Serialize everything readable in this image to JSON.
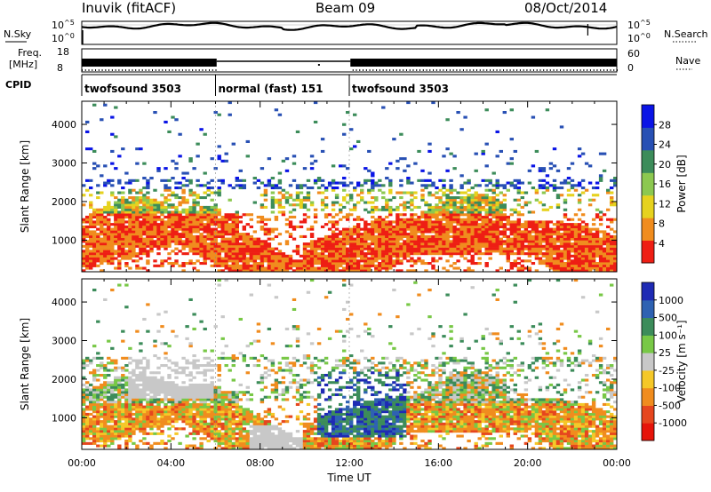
{
  "header": {
    "station": "Inuvik (fitACF)",
    "beam": "Beam 09",
    "date": "08/Oct/2014"
  },
  "strip_labels": {
    "nsky": "N.Sky",
    "nsearch": "N.Search",
    "freq": "Freq.",
    "freq_unit": "[MHz]",
    "nave": "Nave",
    "cpid": "CPID",
    "nsky_ticks": [
      "10^5",
      "10^0"
    ],
    "freq_ticks": [
      "8",
      "18"
    ],
    "nave_ticks": [
      "60",
      "0"
    ],
    "nsearch_ticks": [
      "10^5",
      "10^0"
    ]
  },
  "cpid_segments": [
    {
      "label": "twofsound 3503",
      "start_hour": 0,
      "end_hour": 6
    },
    {
      "label": "normal (fast) 151",
      "start_hour": 6,
      "end_hour": 12
    },
    {
      "label": "twofsound 3503",
      "start_hour": 12,
      "end_hour": 24
    }
  ],
  "chart_data": [
    {
      "type": "heatmap",
      "panel": "power",
      "ylabel": "Slant Range [km]",
      "yticks": [
        1000,
        2000,
        3000,
        4000
      ],
      "ylim": [
        180,
        4600
      ],
      "colorbar_label": "Power [dB]",
      "colorbar_ticks": [
        4,
        8,
        12,
        16,
        20,
        24,
        28
      ],
      "colorbar_range": [
        0,
        32
      ],
      "colors": [
        "#0a14e6",
        "#2850b4",
        "#3c8c5a",
        "#8cc850",
        "#e6d21e",
        "#f08c1e",
        "#ee1e14"
      ]
    },
    {
      "type": "heatmap",
      "panel": "velocity",
      "ylabel": "Slant Range [km]",
      "yticks": [
        1000,
        2000,
        3000,
        4000
      ],
      "ylim": [
        180,
        4600
      ],
      "colorbar_label": "Velocity [m s⁻¹]",
      "colorbar_ticks": [
        1000,
        500,
        100,
        25,
        -25,
        -100,
        -500,
        -1000
      ],
      "colors": [
        "#1e2ab4",
        "#2e62b2",
        "#3c8c5a",
        "#78c846",
        "#c8c8c8",
        "#f5c828",
        "#f08c1e",
        "#e6461e",
        "#e6140a"
      ]
    }
  ],
  "xaxis": {
    "ticks": [
      "00:00",
      "04:00",
      "08:00",
      "12:00",
      "16:00",
      "20:00",
      "00:00"
    ],
    "label": "Time UT"
  }
}
